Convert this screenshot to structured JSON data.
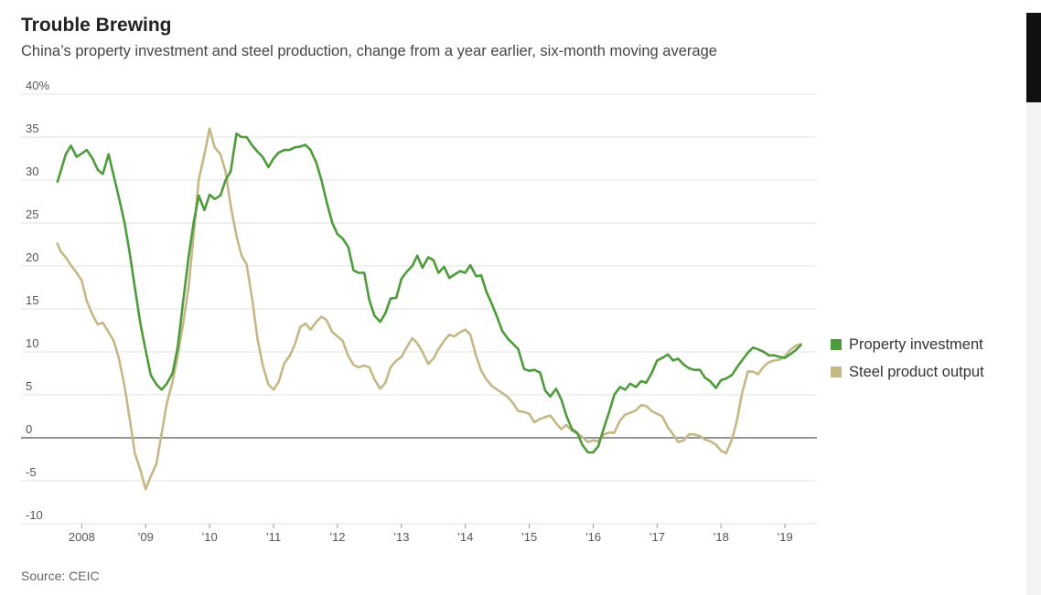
{
  "header": {
    "title": "Trouble Brewing",
    "subtitle": "China’s property investment and steel production, change from a year earlier, six-month moving average"
  },
  "source": "Source: CEIC",
  "colors": {
    "property": "#4d9b3b",
    "steel": "#c4b887",
    "grid": "#e3e3e3",
    "zero": "#555555"
  },
  "chart_data": {
    "type": "line",
    "ylim": [
      -10,
      40
    ],
    "xlim": [
      2007.58,
      2019.5
    ],
    "y_ticks": [
      {
        "value": 40,
        "label": "40%"
      },
      {
        "value": 35,
        "label": "35"
      },
      {
        "value": 30,
        "label": "30"
      },
      {
        "value": 25,
        "label": "25"
      },
      {
        "value": 20,
        "label": "20"
      },
      {
        "value": 15,
        "label": "15"
      },
      {
        "value": 10,
        "label": "10"
      },
      {
        "value": 5,
        "label": "5"
      },
      {
        "value": 0,
        "label": "0"
      },
      {
        "value": -5,
        "label": "-5"
      },
      {
        "value": -10,
        "label": "-10"
      }
    ],
    "x_ticks": [
      {
        "value": 2008,
        "label": "2008"
      },
      {
        "value": 2009,
        "label": "’09"
      },
      {
        "value": 2010,
        "label": "’10"
      },
      {
        "value": 2011,
        "label": "’11"
      },
      {
        "value": 2012,
        "label": "’12"
      },
      {
        "value": 2013,
        "label": "’13"
      },
      {
        "value": 2014,
        "label": "’14"
      },
      {
        "value": 2015,
        "label": "’15"
      },
      {
        "value": 2016,
        "label": "’16"
      },
      {
        "value": 2017,
        "label": "’17"
      },
      {
        "value": 2018,
        "label": "’18"
      },
      {
        "value": 2019,
        "label": "’19"
      }
    ],
    "series": [
      {
        "name": "Property investment",
        "color": "#4d9b3b",
        "points": [
          [
            2007.62,
            29.8
          ],
          [
            2007.67,
            31
          ],
          [
            2007.75,
            33
          ],
          [
            2007.83,
            34
          ],
          [
            2007.92,
            32.7
          ],
          [
            2008.0,
            33.1
          ],
          [
            2008.08,
            33.5
          ],
          [
            2008.17,
            32.5
          ],
          [
            2008.25,
            31.2
          ],
          [
            2008.33,
            30.7
          ],
          [
            2008.42,
            33
          ],
          [
            2008.5,
            30.5
          ],
          [
            2008.58,
            28
          ],
          [
            2008.67,
            25
          ],
          [
            2008.75,
            21.5
          ],
          [
            2008.83,
            17.5
          ],
          [
            2008.92,
            13.2
          ],
          [
            2009.0,
            10.2
          ],
          [
            2009.08,
            7.3
          ],
          [
            2009.17,
            6.2
          ],
          [
            2009.25,
            5.6
          ],
          [
            2009.33,
            6.3
          ],
          [
            2009.42,
            7.5
          ],
          [
            2009.5,
            10.5
          ],
          [
            2009.58,
            15.5
          ],
          [
            2009.67,
            21
          ],
          [
            2009.75,
            25
          ],
          [
            2009.83,
            28.2
          ],
          [
            2009.92,
            26.5
          ],
          [
            2010.0,
            28.3
          ],
          [
            2010.08,
            27.8
          ],
          [
            2010.17,
            28.2
          ],
          [
            2010.25,
            30
          ],
          [
            2010.33,
            31
          ],
          [
            2010.42,
            35.4
          ],
          [
            2010.5,
            35
          ],
          [
            2010.58,
            35
          ],
          [
            2010.67,
            34
          ],
          [
            2010.75,
            33.3
          ],
          [
            2010.83,
            32.7
          ],
          [
            2010.92,
            31.5
          ],
          [
            2011.0,
            32.5
          ],
          [
            2011.08,
            33.2
          ],
          [
            2011.17,
            33.5
          ],
          [
            2011.25,
            33.5
          ],
          [
            2011.33,
            33.8
          ],
          [
            2011.42,
            33.9
          ],
          [
            2011.5,
            34.1
          ],
          [
            2011.58,
            33.5
          ],
          [
            2011.67,
            32
          ],
          [
            2011.75,
            30
          ],
          [
            2011.83,
            27.5
          ],
          [
            2011.92,
            25
          ],
          [
            2012.0,
            23.7
          ],
          [
            2012.08,
            23.2
          ],
          [
            2012.17,
            22.2
          ],
          [
            2012.25,
            19.5
          ],
          [
            2012.33,
            19.2
          ],
          [
            2012.42,
            19.2
          ],
          [
            2012.5,
            16
          ],
          [
            2012.58,
            14.2
          ],
          [
            2012.67,
            13.5
          ],
          [
            2012.75,
            14.5
          ],
          [
            2012.83,
            16.2
          ],
          [
            2012.92,
            16.3
          ],
          [
            2013.0,
            18.5
          ],
          [
            2013.08,
            19.3
          ],
          [
            2013.17,
            20
          ],
          [
            2013.25,
            21.2
          ],
          [
            2013.33,
            19.8
          ],
          [
            2013.42,
            21
          ],
          [
            2013.5,
            20.7
          ],
          [
            2013.58,
            19.2
          ],
          [
            2013.67,
            19.9
          ],
          [
            2013.75,
            18.6
          ],
          [
            2013.83,
            19
          ],
          [
            2013.92,
            19.4
          ],
          [
            2014.0,
            19.2
          ],
          [
            2014.08,
            20.1
          ],
          [
            2014.17,
            18.8
          ],
          [
            2014.25,
            18.9
          ],
          [
            2014.33,
            17
          ],
          [
            2014.42,
            15.5
          ],
          [
            2014.5,
            14
          ],
          [
            2014.58,
            12.4
          ],
          [
            2014.67,
            11.5
          ],
          [
            2014.75,
            10.9
          ],
          [
            2014.83,
            10.3
          ],
          [
            2014.92,
            8
          ],
          [
            2015.0,
            7.8
          ],
          [
            2015.08,
            7.9
          ],
          [
            2015.17,
            7.6
          ],
          [
            2015.25,
            5.5
          ],
          [
            2015.33,
            4.8
          ],
          [
            2015.42,
            5.7
          ],
          [
            2015.5,
            4.5
          ],
          [
            2015.58,
            2.6
          ],
          [
            2015.67,
            1
          ],
          [
            2015.75,
            0.6
          ],
          [
            2015.83,
            -0.8
          ],
          [
            2015.92,
            -1.7
          ],
          [
            2016.0,
            -1.7
          ],
          [
            2016.08,
            -1
          ],
          [
            2016.17,
            1.2
          ],
          [
            2016.25,
            3
          ],
          [
            2016.33,
            5
          ],
          [
            2016.42,
            5.9
          ],
          [
            2016.5,
            5.6
          ],
          [
            2016.58,
            6.3
          ],
          [
            2016.67,
            5.9
          ],
          [
            2016.75,
            6.6
          ],
          [
            2016.83,
            6.4
          ],
          [
            2016.92,
            7.6
          ],
          [
            2017.0,
            9
          ],
          [
            2017.08,
            9.3
          ],
          [
            2017.17,
            9.7
          ],
          [
            2017.25,
            9
          ],
          [
            2017.33,
            9.2
          ],
          [
            2017.42,
            8.5
          ],
          [
            2017.5,
            8.1
          ],
          [
            2017.58,
            7.9
          ],
          [
            2017.67,
            7.9
          ],
          [
            2017.75,
            7
          ],
          [
            2017.83,
            6.6
          ],
          [
            2017.92,
            5.8
          ],
          [
            2018.0,
            6.7
          ],
          [
            2018.08,
            6.9
          ],
          [
            2018.17,
            7.3
          ],
          [
            2018.25,
            8.2
          ],
          [
            2018.33,
            9
          ],
          [
            2018.42,
            9.9
          ],
          [
            2018.5,
            10.5
          ],
          [
            2018.58,
            10.3
          ],
          [
            2018.67,
            10
          ],
          [
            2018.75,
            9.6
          ],
          [
            2018.83,
            9.6
          ],
          [
            2018.92,
            9.4
          ],
          [
            2019.0,
            9.3
          ],
          [
            2019.08,
            9.7
          ],
          [
            2019.17,
            10.2
          ],
          [
            2019.25,
            10.8
          ]
        ]
      },
      {
        "name": "Steel product output",
        "color": "#c4b887",
        "points": [
          [
            2007.62,
            22.6
          ],
          [
            2007.67,
            21.7
          ],
          [
            2007.75,
            21
          ],
          [
            2007.83,
            20.1
          ],
          [
            2007.92,
            19.2
          ],
          [
            2008.0,
            18.3
          ],
          [
            2008.08,
            15.9
          ],
          [
            2008.17,
            14.3
          ],
          [
            2008.25,
            13.2
          ],
          [
            2008.33,
            13.4
          ],
          [
            2008.42,
            12.3
          ],
          [
            2008.5,
            11.3
          ],
          [
            2008.58,
            9.3
          ],
          [
            2008.67,
            6
          ],
          [
            2008.75,
            2.2
          ],
          [
            2008.83,
            -1.8
          ],
          [
            2008.92,
            -3.8
          ],
          [
            2009.0,
            -6
          ],
          [
            2009.08,
            -4.5
          ],
          [
            2009.17,
            -3
          ],
          [
            2009.25,
            0.5
          ],
          [
            2009.33,
            4
          ],
          [
            2009.42,
            6.5
          ],
          [
            2009.5,
            9.5
          ],
          [
            2009.58,
            13
          ],
          [
            2009.67,
            17.5
          ],
          [
            2009.75,
            23.5
          ],
          [
            2009.83,
            30
          ],
          [
            2009.92,
            33
          ],
          [
            2010.0,
            36
          ],
          [
            2010.08,
            33.8
          ],
          [
            2010.17,
            33
          ],
          [
            2010.25,
            31
          ],
          [
            2010.33,
            27
          ],
          [
            2010.42,
            23.5
          ],
          [
            2010.5,
            21.2
          ],
          [
            2010.58,
            20.2
          ],
          [
            2010.67,
            16
          ],
          [
            2010.75,
            11.5
          ],
          [
            2010.83,
            8.5
          ],
          [
            2010.92,
            6.2
          ],
          [
            2011.0,
            5.6
          ],
          [
            2011.08,
            6.5
          ],
          [
            2011.17,
            8.7
          ],
          [
            2011.25,
            9.5
          ],
          [
            2011.33,
            10.8
          ],
          [
            2011.42,
            12.9
          ],
          [
            2011.5,
            13.3
          ],
          [
            2011.58,
            12.6
          ],
          [
            2011.67,
            13.5
          ],
          [
            2011.75,
            14.1
          ],
          [
            2011.83,
            13.7
          ],
          [
            2011.92,
            12.3
          ],
          [
            2012.0,
            11.8
          ],
          [
            2012.08,
            11.3
          ],
          [
            2012.17,
            9.5
          ],
          [
            2012.25,
            8.5
          ],
          [
            2012.33,
            8.2
          ],
          [
            2012.42,
            8.4
          ],
          [
            2012.5,
            8.2
          ],
          [
            2012.58,
            6.8
          ],
          [
            2012.67,
            5.7
          ],
          [
            2012.75,
            6.4
          ],
          [
            2012.83,
            8.2
          ],
          [
            2012.92,
            9
          ],
          [
            2013.0,
            9.4
          ],
          [
            2013.08,
            10.5
          ],
          [
            2013.17,
            11.6
          ],
          [
            2013.25,
            11
          ],
          [
            2013.33,
            10
          ],
          [
            2013.42,
            8.6
          ],
          [
            2013.5,
            9.2
          ],
          [
            2013.58,
            10.3
          ],
          [
            2013.67,
            11.3
          ],
          [
            2013.75,
            12
          ],
          [
            2013.83,
            11.8
          ],
          [
            2013.92,
            12.3
          ],
          [
            2014.0,
            12.6
          ],
          [
            2014.08,
            12
          ],
          [
            2014.17,
            9.5
          ],
          [
            2014.25,
            7.8
          ],
          [
            2014.33,
            6.8
          ],
          [
            2014.42,
            6
          ],
          [
            2014.5,
            5.6
          ],
          [
            2014.58,
            5.2
          ],
          [
            2014.67,
            4.7
          ],
          [
            2014.75,
            4
          ],
          [
            2014.83,
            3.1
          ],
          [
            2014.92,
            3
          ],
          [
            2015.0,
            2.8
          ],
          [
            2015.08,
            1.8
          ],
          [
            2015.17,
            2.2
          ],
          [
            2015.25,
            2.4
          ],
          [
            2015.33,
            2.6
          ],
          [
            2015.42,
            1.7
          ],
          [
            2015.5,
            1
          ],
          [
            2015.58,
            1.5
          ],
          [
            2015.67,
            0.8
          ],
          [
            2015.75,
            0.5
          ],
          [
            2015.83,
            0.1
          ],
          [
            2015.92,
            -0.5
          ],
          [
            2016.0,
            -0.3
          ],
          [
            2016.08,
            -0.4
          ],
          [
            2016.17,
            0.4
          ],
          [
            2016.25,
            0.6
          ],
          [
            2016.33,
            0.6
          ],
          [
            2016.42,
            2
          ],
          [
            2016.5,
            2.7
          ],
          [
            2016.58,
            2.9
          ],
          [
            2016.67,
            3.2
          ],
          [
            2016.75,
            3.8
          ],
          [
            2016.83,
            3.7
          ],
          [
            2016.92,
            3.1
          ],
          [
            2017.0,
            2.8
          ],
          [
            2017.08,
            2.5
          ],
          [
            2017.17,
            1.2
          ],
          [
            2017.25,
            0.4
          ],
          [
            2017.33,
            -0.5
          ],
          [
            2017.42,
            -0.3
          ],
          [
            2017.5,
            0.4
          ],
          [
            2017.58,
            0.4
          ],
          [
            2017.67,
            0.2
          ],
          [
            2017.75,
            -0.2
          ],
          [
            2017.83,
            -0.4
          ],
          [
            2017.92,
            -0.8
          ],
          [
            2018.0,
            -1.5
          ],
          [
            2018.08,
            -1.8
          ],
          [
            2018.17,
            -0.2
          ],
          [
            2018.25,
            2
          ],
          [
            2018.33,
            5.2
          ],
          [
            2018.42,
            7.7
          ],
          [
            2018.5,
            7.7
          ],
          [
            2018.58,
            7.4
          ],
          [
            2018.67,
            8.3
          ],
          [
            2018.75,
            8.8
          ],
          [
            2018.83,
            9
          ],
          [
            2018.92,
            9.1
          ],
          [
            2019.0,
            9.5
          ],
          [
            2019.08,
            10.2
          ],
          [
            2019.17,
            10.7
          ],
          [
            2019.25,
            10.9
          ]
        ]
      }
    ]
  }
}
